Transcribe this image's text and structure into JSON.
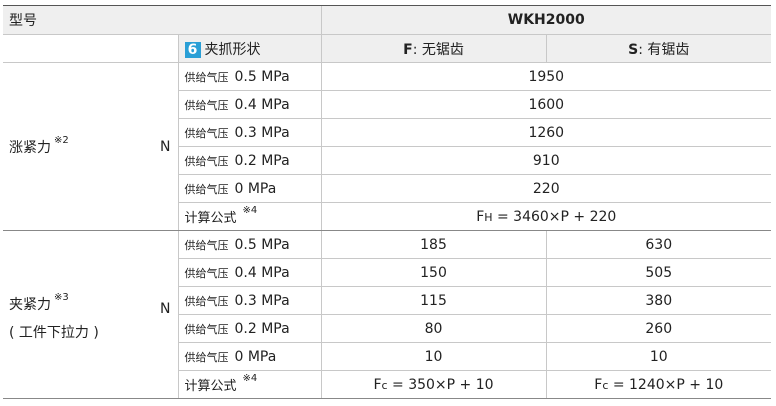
{
  "header": {
    "model_label": "型号",
    "product": "WKH2000",
    "grip_badge": "6",
    "grip_label": "夹抓形状",
    "columns": [
      {
        "code": "F",
        "text": ": 无锯齿"
      },
      {
        "code": "S",
        "text": ": 有锯齿"
      }
    ]
  },
  "sections": [
    {
      "label": "涨紧力",
      "note": "※2",
      "unit": "N",
      "rows": [
        {
          "supply": "供给气压",
          "pressure": "0.5 MPa",
          "values": [
            1950
          ]
        },
        {
          "supply": "供给气压",
          "pressure": "0.4 MPa",
          "values": [
            1600
          ]
        },
        {
          "supply": "供给气压",
          "pressure": "0.3 MPa",
          "values": [
            1260
          ]
        },
        {
          "supply": "供给气压",
          "pressure": "0.2 MPa",
          "values": [
            910
          ]
        },
        {
          "supply": "供给气压",
          "pressure": "0 MPa",
          "values": [
            220
          ]
        }
      ],
      "formula": {
        "label": "计算公式",
        "note": "※4",
        "formulas": [
          {
            "symbol": "F",
            "subscript": "H",
            "expression": " = 3460×P + 220"
          }
        ]
      }
    },
    {
      "label": "夹紧力",
      "note": "※3",
      "sublabel": "( 工件下拉力 )",
      "unit": "N",
      "rows": [
        {
          "supply": "供给气压",
          "pressure": "0.5 MPa",
          "values": [
            185,
            630
          ]
        },
        {
          "supply": "供给气压",
          "pressure": "0.4 MPa",
          "values": [
            150,
            505
          ]
        },
        {
          "supply": "供给气压",
          "pressure": "0.3 MPa",
          "values": [
            115,
            380
          ]
        },
        {
          "supply": "供给气压",
          "pressure": "0.2 MPa",
          "values": [
            80,
            260
          ]
        },
        {
          "supply": "供给气压",
          "pressure": "0 MPa",
          "values": [
            10,
            10
          ]
        }
      ],
      "formula": {
        "label": "计算公式",
        "note": "※4",
        "formulas": [
          {
            "symbol": "F",
            "subscript": "c",
            "expression": " = 350×P + 10"
          },
          {
            "symbol": "F",
            "subscript": "c",
            "expression": " = 1240×P + 10"
          }
        ]
      }
    }
  ]
}
